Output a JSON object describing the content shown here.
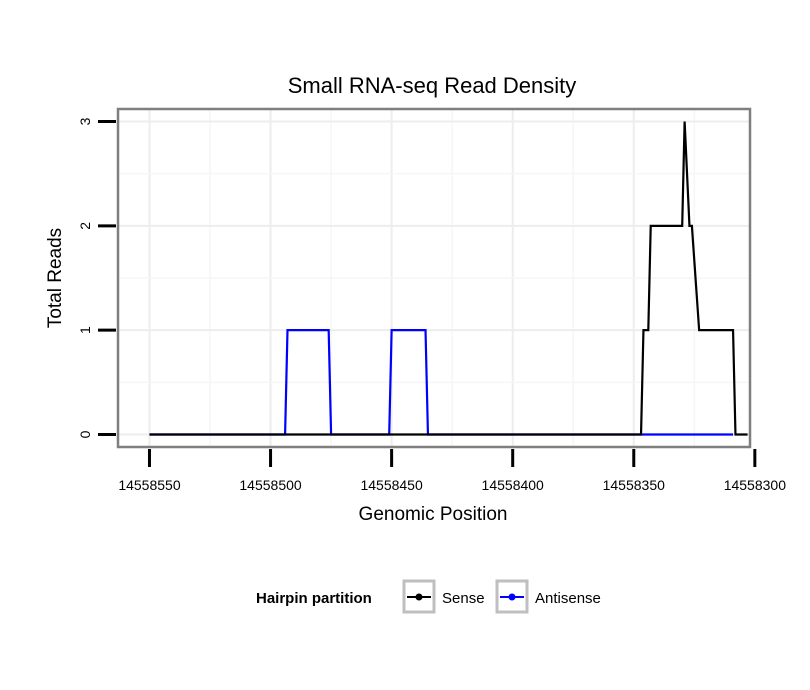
{
  "chart_data": {
    "type": "line",
    "title": "Small RNA-seq Read Density",
    "xlabel": "Genomic Position",
    "ylabel": "Total Reads",
    "xlim": [
      14558563,
      14558302
    ],
    "ylim": [
      -0.12,
      3.12
    ],
    "x_reversed": true,
    "xticks": [
      14558550,
      14558500,
      14558450,
      14558400,
      14558350,
      14558300
    ],
    "xtick_labels": [
      "14558550",
      "14558500",
      "14558450",
      "14558400",
      "14558350",
      "14558300"
    ],
    "yticks": [
      0,
      1,
      2,
      3
    ],
    "ytick_labels": [
      "0",
      "1",
      "2",
      "3"
    ],
    "grid": true,
    "legend": {
      "title": "Hairpin partition",
      "position": "bottom"
    },
    "series": [
      {
        "name": "Sense",
        "color": "#000000",
        "x": [
          14558550,
          14558347,
          14558346,
          14558344,
          14558343,
          14558339,
          14558330,
          14558329,
          14558327,
          14558326,
          14558323,
          14558322,
          14558319,
          14558309,
          14558308,
          14558303
        ],
        "y": [
          0,
          0,
          1,
          1,
          2,
          2,
          2,
          3,
          2,
          2,
          1,
          1,
          1,
          1,
          0,
          0
        ]
      },
      {
        "name": "Antisense",
        "color": "#0000ff",
        "x": [
          14558550,
          14558494,
          14558493,
          14558476,
          14558475,
          14558451,
          14558450,
          14558436,
          14558435,
          14558348,
          14558309
        ],
        "y": [
          0,
          0,
          1,
          1,
          0,
          0,
          1,
          1,
          0,
          0,
          0
        ]
      }
    ]
  }
}
